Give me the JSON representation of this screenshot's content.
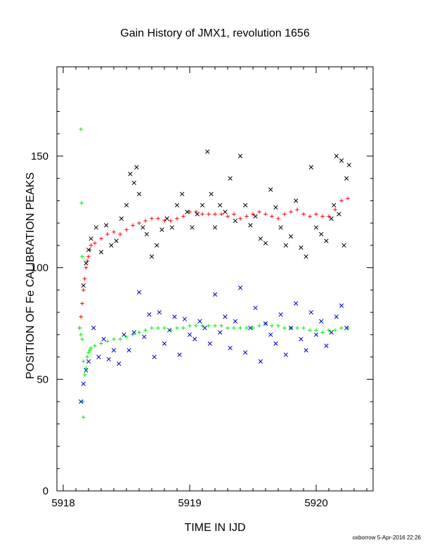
{
  "chart_data": {
    "type": "scatter",
    "title": "Gain History of JMX1, revolution 1656",
    "xlabel": "TIME IN IJD",
    "ylabel": "POSITION OF Fe CALIBRATION PEAKS",
    "xlim": [
      5917.95,
      5920.45
    ],
    "ylim": [
      0,
      190
    ],
    "xticks": [
      5918,
      5919,
      5920
    ],
    "yticks": [
      0,
      50,
      100,
      150
    ],
    "grid": false,
    "footer": "oxborrow  5-Apr-2016 22:26",
    "colors": {
      "red": "#ff0000",
      "green": "#00ee00",
      "black": "#000000",
      "blue": "#0000cc"
    },
    "series": [
      {
        "marker": "plus",
        "color": "#ff0000",
        "x": [
          5918.13,
          5918.14,
          5918.15,
          5918.16,
          5918.17,
          5918.18,
          5918.19,
          5918.2,
          5918.21,
          5918.22,
          5918.25,
          5918.3,
          5918.35,
          5918.4,
          5918.45,
          5918.5,
          5918.55,
          5918.6,
          5918.65,
          5918.7,
          5918.75,
          5918.8,
          5918.85,
          5918.9,
          5918.95,
          5919.0,
          5919.05,
          5919.1,
          5919.15,
          5919.2,
          5919.25,
          5919.3,
          5919.35,
          5919.4,
          5919.45,
          5919.5,
          5919.55,
          5919.6,
          5919.65,
          5919.7,
          5919.75,
          5919.8,
          5919.85,
          5919.9,
          5919.95,
          5920.0,
          5920.05,
          5920.1,
          5920.15,
          5920.2,
          5920.25
        ],
        "y": [
          73,
          78,
          84,
          90,
          95,
          100,
          103,
          105,
          108,
          110,
          111,
          113,
          115,
          116,
          115,
          117,
          119,
          120,
          121,
          122,
          122,
          121,
          121,
          122,
          123,
          125,
          125,
          124,
          124,
          124,
          124,
          123,
          124,
          122,
          123,
          124,
          125,
          124,
          123,
          122,
          124,
          125,
          126,
          124,
          123,
          124,
          123,
          123,
          126,
          130,
          131
        ]
      },
      {
        "marker": "plus",
        "color": "#00ee00",
        "x": [
          5918.13,
          5918.14,
          5918.15,
          5918.16,
          5918.17,
          5918.18,
          5918.19,
          5918.2,
          5918.21,
          5918.22,
          5918.25,
          5918.3,
          5918.35,
          5918.4,
          5918.45,
          5918.5,
          5918.55,
          5918.6,
          5918.65,
          5918.7,
          5918.75,
          5918.8,
          5918.85,
          5918.9,
          5918.95,
          5919.0,
          5919.05,
          5919.1,
          5919.15,
          5919.2,
          5919.25,
          5919.3,
          5919.35,
          5919.4,
          5919.45,
          5919.5,
          5919.55,
          5919.6,
          5919.65,
          5919.7,
          5919.75,
          5919.8,
          5919.85,
          5919.9,
          5919.95,
          5920.0,
          5920.05,
          5920.1,
          5920.15,
          5920.2,
          5920.25,
          5918.14,
          5918.145,
          5918.15,
          5918.155,
          5918.16
        ],
        "y": [
          73,
          70,
          68,
          58,
          52,
          55,
          60,
          62,
          63,
          64,
          65,
          66,
          67,
          68,
          68,
          69,
          70,
          71,
          72,
          73,
          73,
          73,
          72,
          73,
          73,
          74,
          74,
          74,
          74,
          74,
          74,
          73,
          73,
          73,
          73,
          73,
          74,
          75,
          74,
          74,
          73,
          73,
          73,
          73,
          72,
          72,
          71,
          72,
          72,
          73,
          73,
          162,
          129,
          105,
          40,
          33
        ]
      },
      {
        "marker": "cross",
        "color": "#000000",
        "x": [
          5918.16,
          5918.18,
          5918.2,
          5918.22,
          5918.26,
          5918.3,
          5918.34,
          5918.38,
          5918.42,
          5918.46,
          5918.5,
          5918.53,
          5918.56,
          5918.58,
          5918.6,
          5918.63,
          5918.66,
          5918.7,
          5918.74,
          5918.78,
          5918.82,
          5918.86,
          5918.9,
          5918.94,
          5918.98,
          5919.02,
          5919.06,
          5919.1,
          5919.14,
          5919.17,
          5919.2,
          5919.24,
          5919.28,
          5919.32,
          5919.36,
          5919.4,
          5919.44,
          5919.48,
          5919.52,
          5919.56,
          5919.6,
          5919.64,
          5919.68,
          5919.72,
          5919.76,
          5919.8,
          5919.84,
          5919.88,
          5919.92,
          5919.96,
          5920.0,
          5920.04,
          5920.08,
          5920.12,
          5920.14,
          5920.16,
          5920.18,
          5920.2,
          5920.22,
          5920.24,
          5920.26
        ],
        "y": [
          92,
          102,
          108,
          113,
          118,
          107,
          119,
          110,
          112,
          122,
          128,
          142,
          138,
          145,
          133,
          118,
          115,
          105,
          110,
          117,
          122,
          118,
          128,
          133,
          125,
          118,
          124,
          128,
          152,
          133,
          118,
          128,
          125,
          140,
          121,
          150,
          128,
          119,
          123,
          113,
          111,
          135,
          127,
          118,
          110,
          114,
          130,
          109,
          105,
          145,
          118,
          115,
          112,
          122,
          128,
          150,
          124,
          148,
          110,
          140,
          146
        ]
      },
      {
        "marker": "cross",
        "color": "#0000cc",
        "x": [
          5918.14,
          5918.16,
          5918.18,
          5918.2,
          5918.24,
          5918.28,
          5918.32,
          5918.36,
          5918.4,
          5918.44,
          5918.48,
          5918.52,
          5918.56,
          5918.6,
          5918.64,
          5918.68,
          5918.72,
          5918.76,
          5918.8,
          5918.84,
          5918.88,
          5918.92,
          5918.96,
          5919.0,
          5919.04,
          5919.08,
          5919.12,
          5919.16,
          5919.2,
          5919.24,
          5919.28,
          5919.32,
          5919.36,
          5919.4,
          5919.44,
          5919.48,
          5919.52,
          5919.56,
          5919.6,
          5919.64,
          5919.68,
          5919.72,
          5919.76,
          5919.8,
          5919.84,
          5919.88,
          5919.92,
          5919.96,
          5920.0,
          5920.04,
          5920.08,
          5920.12,
          5920.16,
          5920.2,
          5920.24
        ],
        "y": [
          40,
          48,
          54,
          58,
          73,
          60,
          68,
          59,
          63,
          57,
          70,
          63,
          71,
          89,
          69,
          79,
          60,
          80,
          66,
          72,
          78,
          61,
          77,
          70,
          68,
          76,
          73,
          66,
          88,
          71,
          78,
          64,
          76,
          91,
          62,
          73,
          82,
          58,
          75,
          70,
          66,
          79,
          61,
          73,
          84,
          68,
          63,
          80,
          70,
          76,
          65,
          71,
          78,
          83,
          73
        ]
      }
    ]
  }
}
